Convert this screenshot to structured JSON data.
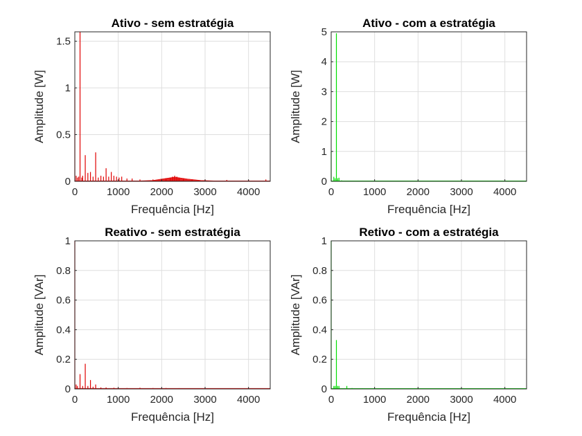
{
  "chart_data": [
    {
      "type": "line",
      "title": "Ativo - sem estratégia",
      "xlabel": "Frequência [Hz]",
      "ylabel": "Amplitude [W]",
      "xlim": [
        0,
        4500
      ],
      "ylim": [
        0,
        1.6
      ],
      "xticks": [
        0,
        1000,
        2000,
        3000,
        4000
      ],
      "yticks": [
        0,
        0.5,
        1,
        1.5
      ],
      "xtick_labels": [
        "0",
        "1000",
        "2000",
        "3000",
        "4000"
      ],
      "ytick_labels": [
        "0",
        "0.5",
        "1",
        "1.5"
      ],
      "grid": true,
      "color": "#e00000",
      "spikes": [
        [
          0,
          1.0
        ],
        [
          30,
          0.06
        ],
        [
          60,
          0.04
        ],
        [
          90,
          0.05
        ],
        [
          120,
          1.6
        ],
        [
          160,
          0.04
        ],
        [
          180,
          0.06
        ],
        [
          240,
          0.28
        ],
        [
          300,
          0.09
        ],
        [
          360,
          0.1
        ],
        [
          420,
          0.05
        ],
        [
          480,
          0.31
        ],
        [
          540,
          0.04
        ],
        [
          600,
          0.06
        ],
        [
          660,
          0.05
        ],
        [
          720,
          0.14
        ],
        [
          780,
          0.05
        ],
        [
          840,
          0.1
        ],
        [
          900,
          0.06
        ],
        [
          960,
          0.05
        ],
        [
          1020,
          0.04
        ],
        [
          1080,
          0.05
        ],
        [
          1200,
          0.03
        ],
        [
          1320,
          0.03
        ],
        [
          1500,
          0.02
        ],
        [
          1800,
          0.02
        ],
        [
          2100,
          0.03
        ],
        [
          2200,
          0.04
        ],
        [
          2250,
          0.05
        ],
        [
          2300,
          0.06
        ],
        [
          2350,
          0.05
        ],
        [
          2400,
          0.04
        ],
        [
          2500,
          0.03
        ],
        [
          2700,
          0.02
        ],
        [
          3000,
          0.02
        ],
        [
          3500,
          0.015
        ],
        [
          4000,
          0.015
        ],
        [
          4400,
          0.02
        ]
      ],
      "noise_floor": [
        [
          1500,
          0.005
        ],
        [
          1800,
          0.01
        ],
        [
          2000,
          0.025
        ],
        [
          2300,
          0.045
        ],
        [
          2600,
          0.025
        ],
        [
          2900,
          0.01
        ],
        [
          3200,
          0.005
        ],
        [
          4500,
          0.005
        ]
      ]
    },
    {
      "type": "line",
      "title": "Ativo - com a estratégia",
      "xlabel": "Frequência [Hz]",
      "ylabel": "Amplitude [W]",
      "xlim": [
        0,
        4500
      ],
      "ylim": [
        0,
        5
      ],
      "xticks": [
        0,
        1000,
        2000,
        3000,
        4000
      ],
      "yticks": [
        0,
        1,
        2,
        3,
        4,
        5
      ],
      "xtick_labels": [
        "0",
        "1000",
        "2000",
        "3000",
        "4000"
      ],
      "ytick_labels": [
        "0",
        "1",
        "2",
        "3",
        "4",
        "5"
      ],
      "grid": true,
      "color": "#00e000",
      "spikes": [
        [
          0,
          1.0
        ],
        [
          60,
          0.15
        ],
        [
          90,
          0.1
        ],
        [
          120,
          4.95
        ],
        [
          150,
          0.1
        ],
        [
          180,
          0.12
        ],
        [
          240,
          0.03
        ],
        [
          360,
          0.02
        ],
        [
          480,
          0.02
        ],
        [
          600,
          0.015
        ],
        [
          720,
          0.015
        ],
        [
          900,
          0.01
        ],
        [
          1200,
          0.01
        ],
        [
          1800,
          0.008
        ],
        [
          2400,
          0.008
        ],
        [
          3000,
          0.006
        ],
        [
          3600,
          0.006
        ],
        [
          4200,
          0.006
        ]
      ],
      "noise_floor": [
        [
          0,
          0.005
        ],
        [
          4500,
          0.005
        ]
      ]
    },
    {
      "type": "line",
      "title": "Reativo - sem estratégia",
      "xlabel": "Frequência [Hz]",
      "ylabel": "Amplitude [VAr]",
      "xlim": [
        0,
        4500
      ],
      "ylim": [
        0,
        1
      ],
      "xticks": [
        0,
        1000,
        2000,
        3000,
        4000
      ],
      "yticks": [
        0,
        0.2,
        0.4,
        0.6,
        0.8,
        1
      ],
      "xtick_labels": [
        "0",
        "1000",
        "2000",
        "3000",
        "4000"
      ],
      "ytick_labels": [
        "0",
        "0.2",
        "0.4",
        "0.6",
        "0.8",
        "1"
      ],
      "grid": true,
      "color": "#e00000",
      "spikes": [
        [
          0,
          1.0
        ],
        [
          30,
          0.03
        ],
        [
          60,
          0.02
        ],
        [
          120,
          0.1
        ],
        [
          180,
          0.02
        ],
        [
          240,
          0.17
        ],
        [
          300,
          0.02
        ],
        [
          360,
          0.06
        ],
        [
          420,
          0.015
        ],
        [
          480,
          0.03
        ],
        [
          600,
          0.01
        ],
        [
          720,
          0.01
        ],
        [
          900,
          0.008
        ],
        [
          1200,
          0.006
        ],
        [
          1500,
          0.008
        ],
        [
          1800,
          0.006
        ],
        [
          2100,
          0.006
        ],
        [
          2400,
          0.005
        ],
        [
          3000,
          0.005
        ],
        [
          3600,
          0.004
        ],
        [
          4200,
          0.004
        ]
      ],
      "noise_floor": [
        [
          0,
          0.004
        ],
        [
          4500,
          0.004
        ]
      ]
    },
    {
      "type": "line",
      "title": "Retivo - com a estratégia",
      "xlabel": "Frequência [Hz]",
      "ylabel": "Amplitude [VAr]",
      "xlim": [
        0,
        4500
      ],
      "ylim": [
        0,
        1
      ],
      "xticks": [
        0,
        1000,
        2000,
        3000,
        4000
      ],
      "yticks": [
        0,
        0.2,
        0.4,
        0.6,
        0.8,
        1
      ],
      "xtick_labels": [
        "0",
        "1000",
        "2000",
        "3000",
        "4000"
      ],
      "ytick_labels": [
        "0",
        "0.2",
        "0.4",
        "0.6",
        "0.8",
        "1"
      ],
      "grid": true,
      "color": "#00e000",
      "spikes": [
        [
          0,
          1.0
        ],
        [
          60,
          0.02
        ],
        [
          90,
          0.02
        ],
        [
          120,
          0.33
        ],
        [
          150,
          0.02
        ],
        [
          180,
          0.02
        ],
        [
          360,
          0.02
        ],
        [
          480,
          0.006
        ],
        [
          720,
          0.005
        ],
        [
          1200,
          0.004
        ],
        [
          1800,
          0.004
        ],
        [
          2400,
          0.003
        ],
        [
          3000,
          0.003
        ],
        [
          3600,
          0.003
        ],
        [
          4200,
          0.003
        ]
      ],
      "noise_floor": [
        [
          0,
          0.003
        ],
        [
          4500,
          0.003
        ]
      ]
    }
  ]
}
